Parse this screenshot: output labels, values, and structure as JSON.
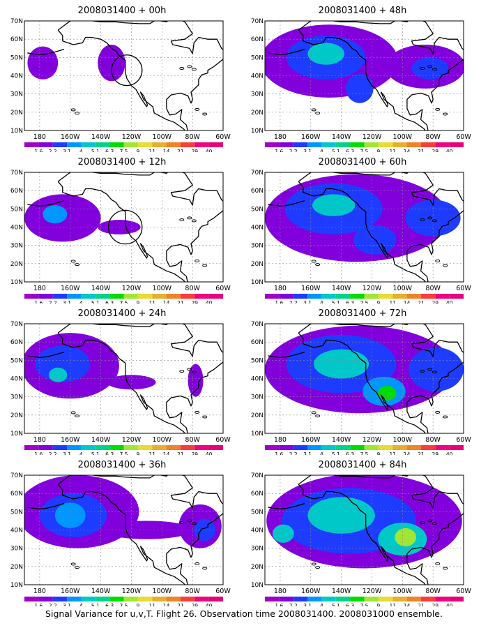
{
  "footer": "Signal Variance for u,v,T. Flight 26. Observation time 2008031400. 2008031000 ensemble.",
  "colorbar": {
    "labels": [
      "1.6",
      "2.2",
      "3.1",
      "4",
      "5.1",
      "6.3",
      "7.5",
      "9",
      "11",
      "14",
      "21",
      "29",
      "40"
    ],
    "colors": [
      "#a000c8",
      "#8200dc",
      "#1e3cff",
      "#0096ff",
      "#00c8c8",
      "#00d28c",
      "#00dc00",
      "#a0e632",
      "#e6dc32",
      "#e6af2d",
      "#f08228",
      "#fa3c3c",
      "#f00082"
    ]
  },
  "chart_data": [
    {
      "type": "heatmap",
      "title": "2008031400 + 00h",
      "xticks": [
        "180",
        "160W",
        "140W",
        "120W",
        "100W",
        "80W",
        "60W"
      ],
      "yticks": [
        "10N",
        "20N",
        "30N",
        "40N",
        "50N",
        "60N",
        "70N"
      ],
      "xlim": [
        -190,
        -60
      ],
      "ylim": [
        10,
        70
      ],
      "grid": true,
      "blobs": [
        {
          "lon": -178,
          "lat": 47,
          "rx": 10,
          "ry": 9,
          "level": 1
        },
        {
          "lon": -133,
          "lat": 47,
          "rx": 9,
          "ry": 10,
          "level": 1
        }
      ],
      "circles": [
        {
          "lon": -123,
          "lat": 43,
          "r": 10
        }
      ]
    },
    {
      "type": "heatmap",
      "title": "2008031400 + 12h",
      "xticks": [
        "180",
        "160W",
        "140W",
        "120W",
        "100W",
        "80W",
        "60W"
      ],
      "yticks": [
        "10N",
        "20N",
        "30N",
        "40N",
        "50N",
        "60N",
        "70N"
      ],
      "xlim": [
        -190,
        -60
      ],
      "ylim": [
        10,
        70
      ],
      "grid": true,
      "blobs": [
        {
          "lon": -165,
          "lat": 45,
          "rx": 25,
          "ry": 13,
          "level": 1
        },
        {
          "lon": -170,
          "lat": 47,
          "rx": 8,
          "ry": 5,
          "level": 3
        },
        {
          "lon": -128,
          "lat": 40,
          "rx": 14,
          "ry": 4,
          "level": 1
        }
      ],
      "circles": [
        {
          "lon": -124,
          "lat": 40,
          "r": 11
        }
      ]
    },
    {
      "type": "heatmap",
      "title": "2008031400 + 24h",
      "xticks": [
        "180",
        "160W",
        "140W",
        "120W",
        "100W",
        "80W",
        "60W"
      ],
      "yticks": [
        "10N",
        "20N",
        "30N",
        "40N",
        "50N",
        "60N",
        "70N"
      ],
      "xlim": [
        -190,
        -60
      ],
      "ylim": [
        10,
        70
      ],
      "grid": true,
      "blobs": [
        {
          "lon": -160,
          "lat": 47,
          "rx": 32,
          "ry": 18,
          "level": 1
        },
        {
          "lon": -165,
          "lat": 48,
          "rx": 18,
          "ry": 10,
          "level": 2
        },
        {
          "lon": -168,
          "lat": 42,
          "rx": 6,
          "ry": 4,
          "level": 4
        },
        {
          "lon": -120,
          "lat": 38,
          "rx": 16,
          "ry": 4,
          "level": 1
        },
        {
          "lon": -78,
          "lat": 39,
          "rx": 5,
          "ry": 9,
          "level": 1
        }
      ],
      "circles": []
    },
    {
      "type": "heatmap",
      "title": "2008031400 + 36h",
      "xticks": [
        "180",
        "160W",
        "140W",
        "120W",
        "100W",
        "80W",
        "60W"
      ],
      "yticks": [
        "10N",
        "20N",
        "30N",
        "40N",
        "50N",
        "60N",
        "70N"
      ],
      "xlim": [
        -190,
        -60
      ],
      "ylim": [
        10,
        70
      ],
      "grid": true,
      "blobs": [
        {
          "lon": -155,
          "lat": 50,
          "rx": 40,
          "ry": 20,
          "level": 1
        },
        {
          "lon": -158,
          "lat": 48,
          "rx": 22,
          "ry": 12,
          "level": 2
        },
        {
          "lon": -160,
          "lat": 48,
          "rx": 10,
          "ry": 7,
          "level": 3
        },
        {
          "lon": -110,
          "lat": 40,
          "rx": 30,
          "ry": 5,
          "level": 1
        },
        {
          "lon": -75,
          "lat": 42,
          "rx": 14,
          "ry": 12,
          "level": 1
        },
        {
          "lon": -72,
          "lat": 40,
          "rx": 7,
          "ry": 6,
          "level": 2
        }
      ],
      "circles": []
    },
    {
      "type": "heatmap",
      "title": "2008031400 + 48h",
      "xticks": [
        "180",
        "160W",
        "140W",
        "120W",
        "100W",
        "80W",
        "60W"
      ],
      "yticks": [
        "10N",
        "20N",
        "30N",
        "40N",
        "50N",
        "60N",
        "70N"
      ],
      "xlim": [
        -190,
        -60
      ],
      "ylim": [
        10,
        70
      ],
      "grid": true,
      "blobs": [
        {
          "lon": -148,
          "lat": 48,
          "rx": 45,
          "ry": 20,
          "level": 1
        },
        {
          "lon": -150,
          "lat": 50,
          "rx": 26,
          "ry": 12,
          "level": 2
        },
        {
          "lon": -150,
          "lat": 52,
          "rx": 12,
          "ry": 6,
          "level": 4
        },
        {
          "lon": -85,
          "lat": 45,
          "rx": 26,
          "ry": 12,
          "level": 1
        },
        {
          "lon": -82,
          "lat": 44,
          "rx": 12,
          "ry": 6,
          "level": 2
        },
        {
          "lon": -128,
          "lat": 33,
          "rx": 9,
          "ry": 8,
          "level": 2
        }
      ],
      "circles": []
    },
    {
      "type": "heatmap",
      "title": "2008031400 + 60h",
      "xticks": [
        "180",
        "160W",
        "140W",
        "120W",
        "100W",
        "80W",
        "60W"
      ],
      "yticks": [
        "10N",
        "20N",
        "30N",
        "40N",
        "50N",
        "60N",
        "70N"
      ],
      "xlim": [
        -190,
        -60
      ],
      "ylim": [
        10,
        70
      ],
      "grid": true,
      "blobs": [
        {
          "lon": -130,
          "lat": 45,
          "rx": 60,
          "ry": 24,
          "level": 1
        },
        {
          "lon": -145,
          "lat": 50,
          "rx": 32,
          "ry": 14,
          "level": 2
        },
        {
          "lon": -145,
          "lat": 52,
          "rx": 14,
          "ry": 6,
          "level": 4
        },
        {
          "lon": -118,
          "lat": 33,
          "rx": 14,
          "ry": 8,
          "level": 2
        },
        {
          "lon": -80,
          "lat": 45,
          "rx": 18,
          "ry": 10,
          "level": 2
        }
      ],
      "circles": []
    },
    {
      "type": "heatmap",
      "title": "2008031400 + 72h",
      "xticks": [
        "180",
        "160W",
        "140W",
        "120W",
        "100W",
        "80W",
        "60W"
      ],
      "yticks": [
        "10N",
        "20N",
        "30N",
        "40N",
        "50N",
        "60N",
        "70N"
      ],
      "xlim": [
        -190,
        -60
      ],
      "ylim": [
        10,
        70
      ],
      "grid": true,
      "blobs": [
        {
          "lon": -128,
          "lat": 45,
          "rx": 62,
          "ry": 24,
          "level": 1
        },
        {
          "lon": -140,
          "lat": 48,
          "rx": 36,
          "ry": 16,
          "level": 2
        },
        {
          "lon": -140,
          "lat": 48,
          "rx": 18,
          "ry": 8,
          "level": 4
        },
        {
          "lon": -112,
          "lat": 33,
          "rx": 14,
          "ry": 8,
          "level": 3
        },
        {
          "lon": -110,
          "lat": 32,
          "rx": 6,
          "ry": 4,
          "level": 6
        },
        {
          "lon": -78,
          "lat": 45,
          "rx": 18,
          "ry": 12,
          "level": 2
        }
      ],
      "circles": []
    },
    {
      "type": "heatmap",
      "title": "2008031400 + 84h",
      "xticks": [
        "180",
        "160W",
        "140W",
        "120W",
        "100W",
        "80W",
        "60W"
      ],
      "yticks": [
        "10N",
        "20N",
        "30N",
        "40N",
        "50N",
        "60N",
        "70N"
      ],
      "xlim": [
        -190,
        -60
      ],
      "ylim": [
        10,
        70
      ],
      "grid": true,
      "blobs": [
        {
          "lon": -125,
          "lat": 45,
          "rx": 64,
          "ry": 26,
          "level": 1
        },
        {
          "lon": -135,
          "lat": 45,
          "rx": 44,
          "ry": 18,
          "level": 2
        },
        {
          "lon": -140,
          "lat": 48,
          "rx": 22,
          "ry": 10,
          "level": 4
        },
        {
          "lon": -100,
          "lat": 35,
          "rx": 16,
          "ry": 9,
          "level": 4
        },
        {
          "lon": -98,
          "lat": 36,
          "rx": 7,
          "ry": 5,
          "level": 7
        },
        {
          "lon": -178,
          "lat": 38,
          "rx": 7,
          "ry": 5,
          "level": 4
        }
      ],
      "circles": []
    }
  ]
}
